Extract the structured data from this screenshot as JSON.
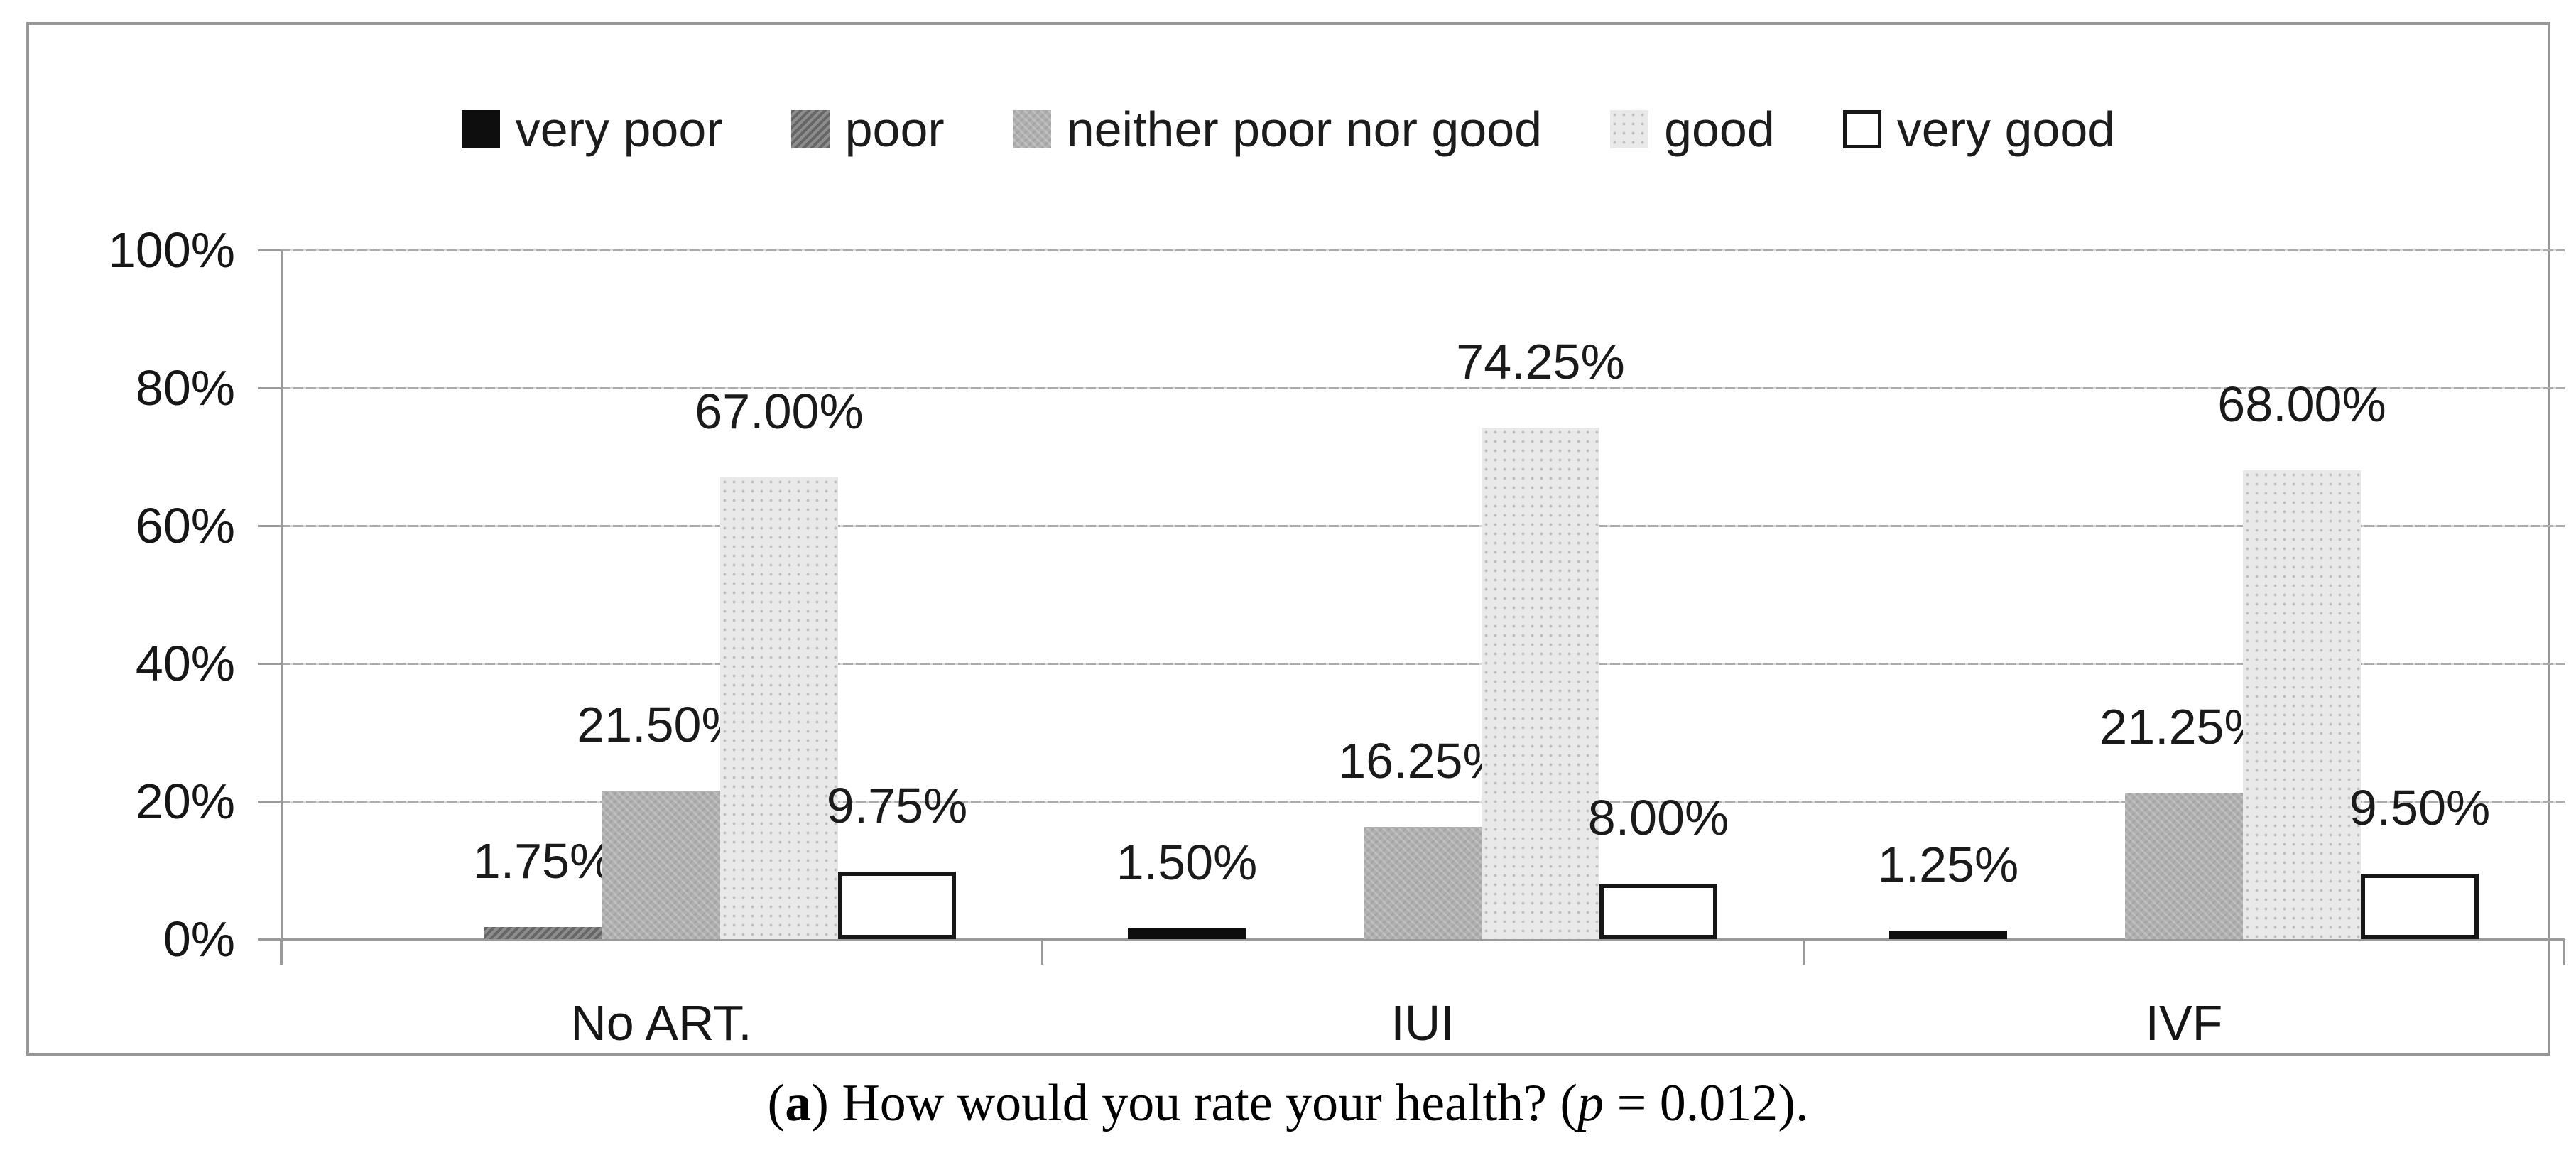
{
  "caption": {
    "pre": "(",
    "bold_label": "a",
    "mid": ") How would you rate your health? (",
    "italic_p": "p",
    "post": " = 0.012)."
  },
  "chart_data": {
    "type": "bar",
    "title": "",
    "xlabel": "",
    "ylabel": "",
    "categories": [
      "No ART.",
      "IUI",
      "IVF"
    ],
    "series": [
      {
        "name": "very poor",
        "values": [
          0,
          1.5,
          1.25
        ],
        "labels": [
          "",
          "1.50%",
          "1.25%"
        ],
        "color": "#0e0e0e"
      },
      {
        "name": "poor",
        "values": [
          1.75,
          0,
          0
        ],
        "labels": [
          "1.75%",
          "",
          ""
        ],
        "color": "#7d7d7d"
      },
      {
        "name": "neither poor nor good",
        "values": [
          21.5,
          16.25,
          21.25
        ],
        "labels": [
          "21.50%",
          "16.25%",
          "21.25%"
        ],
        "color": "#b0b0b0"
      },
      {
        "name": "good",
        "values": [
          67,
          74.25,
          68
        ],
        "labels": [
          "67.00%",
          "74.25%",
          "68.00%"
        ],
        "color": "#e9e9e9"
      },
      {
        "name": "very good",
        "values": [
          9.75,
          8,
          9.5
        ],
        "labels": [
          "9.75%",
          "8.00%",
          "9.50%"
        ],
        "color": "#ffffff",
        "border_color": "#161616"
      }
    ],
    "ylim": [
      0,
      100
    ],
    "ytick_step": 20,
    "yticks": [
      "0%",
      "20%",
      "40%",
      "60%",
      "80%",
      "100%"
    ],
    "grid": true,
    "legend_position": "top",
    "colors": {
      "gridline": "#ababab",
      "axis": "#9a9a9a",
      "panel_border": "#979797",
      "text": "#1a1a1a"
    }
  }
}
